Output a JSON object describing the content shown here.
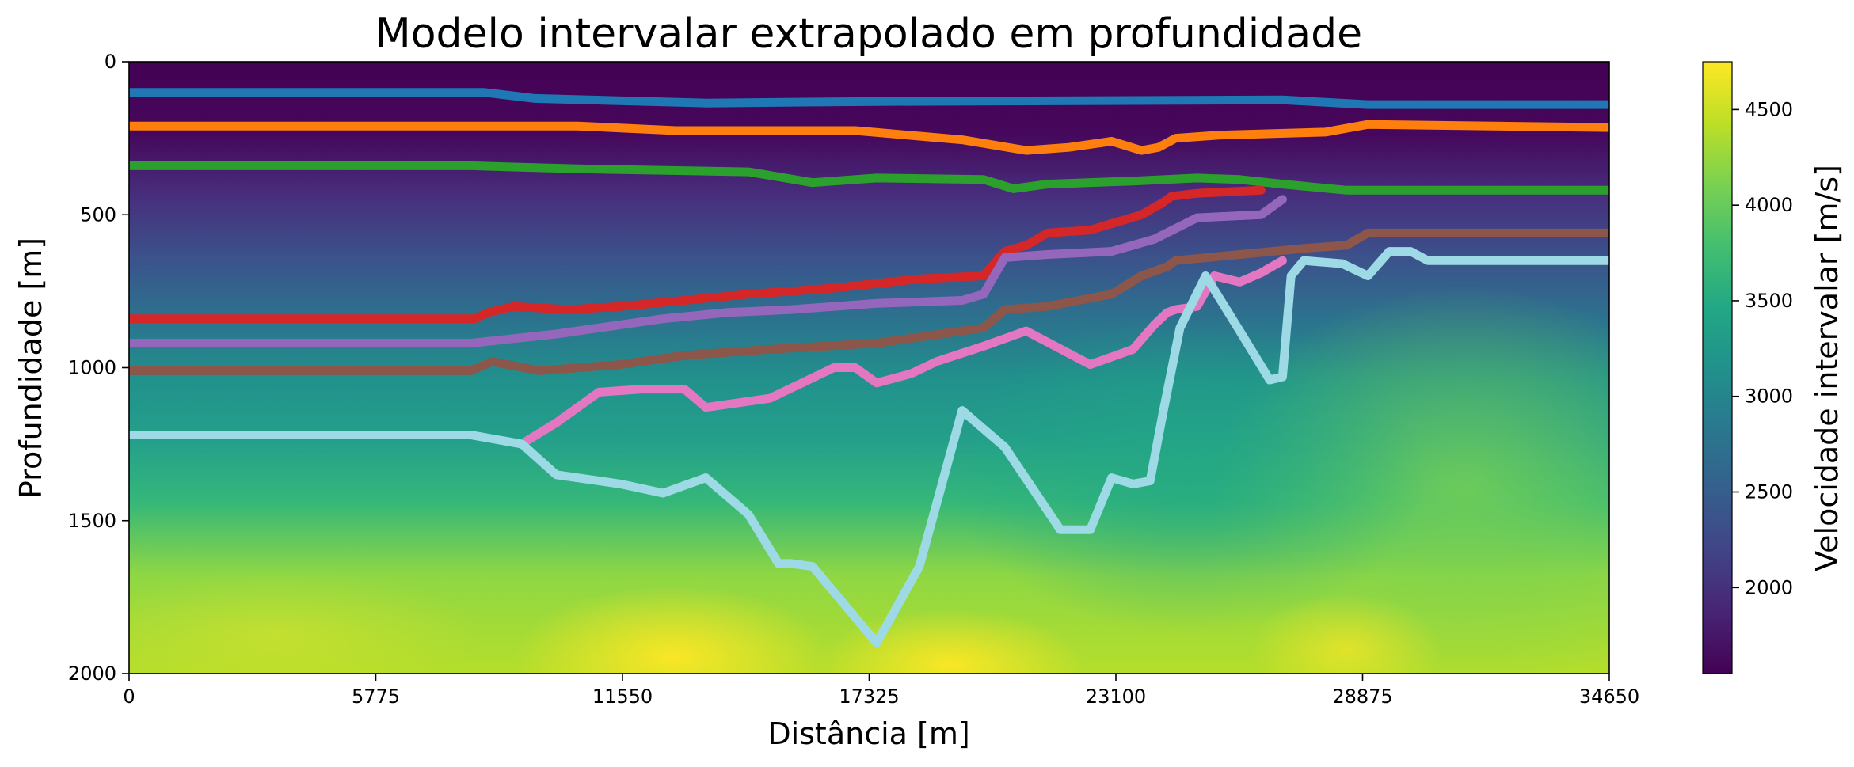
{
  "chart_data": {
    "type": "line",
    "title": "Modelo intervalar extrapolado em profundidade",
    "xlabel": "Distância [m]",
    "ylabel": "Profundidade [m]",
    "xlim": [
      0,
      34650
    ],
    "ylim": [
      2000,
      0
    ],
    "y_inverted": true,
    "x_ticks": [
      "0",
      "5775",
      "11550",
      "17325",
      "23100",
      "28875",
      "34650"
    ],
    "x_tick_values": [
      0,
      5775,
      11550,
      17325,
      23100,
      28875,
      34650
    ],
    "y_ticks": [
      "0",
      "500",
      "1000",
      "1500",
      "2000"
    ],
    "y_tick_values": [
      0,
      500,
      1000,
      1500,
      2000
    ],
    "grid": false,
    "colormap": "viridis",
    "colorbar": {
      "label": "Velocidade intervalar [m/s]",
      "range": [
        1550,
        4750
      ],
      "ticks": [
        "2000",
        "2500",
        "3000",
        "3500",
        "4000",
        "4500"
      ],
      "tick_values": [
        2000,
        2500,
        3000,
        3500,
        4000,
        4500
      ]
    },
    "background_velocity_field": {
      "description_values_m_s": {
        "shallow_0_to_300m": 1650,
        "mid_600m": 2700,
        "deep_1000m": 3500,
        "basement_1800m_left": 4400,
        "basement_1900m_hotspots": 4700
      }
    },
    "series": [
      {
        "color": "#1f77b4",
        "x": [
          0,
          8300,
          9500,
          13500,
          17500,
          27000,
          29000,
          34650
        ],
        "y": [
          100,
          100,
          120,
          135,
          130,
          125,
          140,
          140
        ]
      },
      {
        "color": "#ff7f0e",
        "x": [
          0,
          10500,
          12800,
          17000,
          19500,
          21000,
          22000,
          23000,
          23700,
          24100,
          24500,
          25500,
          28000,
          29000,
          34650
        ],
        "y": [
          210,
          210,
          225,
          225,
          255,
          290,
          280,
          260,
          290,
          280,
          250,
          240,
          230,
          205,
          215
        ]
      },
      {
        "color": "#2ca02c",
        "x": [
          0,
          8000,
          10500,
          14500,
          16000,
          17500,
          20000,
          20700,
          21500,
          23500,
          25000,
          26000,
          27000,
          28500,
          34650
        ],
        "y": [
          340,
          340,
          350,
          360,
          395,
          380,
          385,
          415,
          400,
          390,
          380,
          385,
          400,
          420,
          420
        ]
      },
      {
        "color": "#d62728",
        "x": [
          0,
          8100,
          8400,
          9000,
          10300,
          11500,
          13000,
          14500,
          16500,
          18500,
          20000,
          20500,
          21000,
          21500,
          22500,
          23700,
          24200,
          24400,
          25000,
          26500
        ],
        "y": [
          840,
          840,
          820,
          800,
          810,
          800,
          780,
          760,
          740,
          710,
          700,
          620,
          600,
          560,
          550,
          500,
          460,
          440,
          430,
          420
        ]
      },
      {
        "color": "#9467bd",
        "x": [
          0,
          8000,
          10000,
          11500,
          12500,
          14000,
          15500,
          17500,
          19500,
          20000,
          20500,
          21500,
          23000,
          24000,
          25000,
          26500,
          27000
        ],
        "y": [
          920,
          920,
          890,
          860,
          840,
          820,
          810,
          790,
          780,
          760,
          640,
          630,
          620,
          580,
          510,
          500,
          450
        ]
      },
      {
        "color": "#8c564b",
        "x": [
          0,
          8000,
          8500,
          9600,
          11500,
          13000,
          15000,
          17500,
          18500,
          19000,
          19500,
          20000,
          20500,
          21500,
          23000,
          23700,
          24300,
          24500,
          26000,
          27500,
          28500,
          29000,
          34650
        ],
        "y": [
          1010,
          1010,
          980,
          1010,
          990,
          960,
          940,
          920,
          900,
          890,
          880,
          870,
          810,
          800,
          760,
          700,
          670,
          650,
          630,
          610,
          600,
          560,
          560
        ]
      },
      {
        "color": "#e377c2",
        "x": [
          9300,
          10000,
          11000,
          12000,
          13000,
          13500,
          15000,
          16500,
          17000,
          17500,
          18300,
          18900,
          20000,
          21000,
          22500,
          23500,
          24000,
          24300,
          24500,
          25000,
          25400,
          26000,
          26500,
          27000
        ],
        "y": [
          1240,
          1180,
          1080,
          1070,
          1070,
          1130,
          1100,
          1000,
          1000,
          1050,
          1020,
          980,
          930,
          880,
          990,
          940,
          860,
          820,
          810,
          800,
          700,
          720,
          690,
          650
        ]
      },
      {
        "color": "#9edae5",
        "x": [
          0,
          8000,
          9200,
          10000,
          11500,
          12500,
          13500,
          14500,
          15200,
          15500,
          16000,
          17500,
          18500,
          19500,
          20500,
          21800,
          22500,
          23000,
          23500,
          23900,
          24200,
          24600,
          25200,
          26000,
          26700,
          27000,
          27200,
          27500,
          28400,
          29000,
          29500,
          30000,
          30400,
          34650
        ],
        "y": [
          1220,
          1220,
          1250,
          1350,
          1380,
          1410,
          1360,
          1480,
          1640,
          1640,
          1650,
          1900,
          1650,
          1140,
          1260,
          1530,
          1530,
          1360,
          1380,
          1370,
          1150,
          870,
          700,
          880,
          1040,
          1030,
          700,
          650,
          660,
          700,
          620,
          620,
          650,
          650
        ]
      }
    ]
  }
}
